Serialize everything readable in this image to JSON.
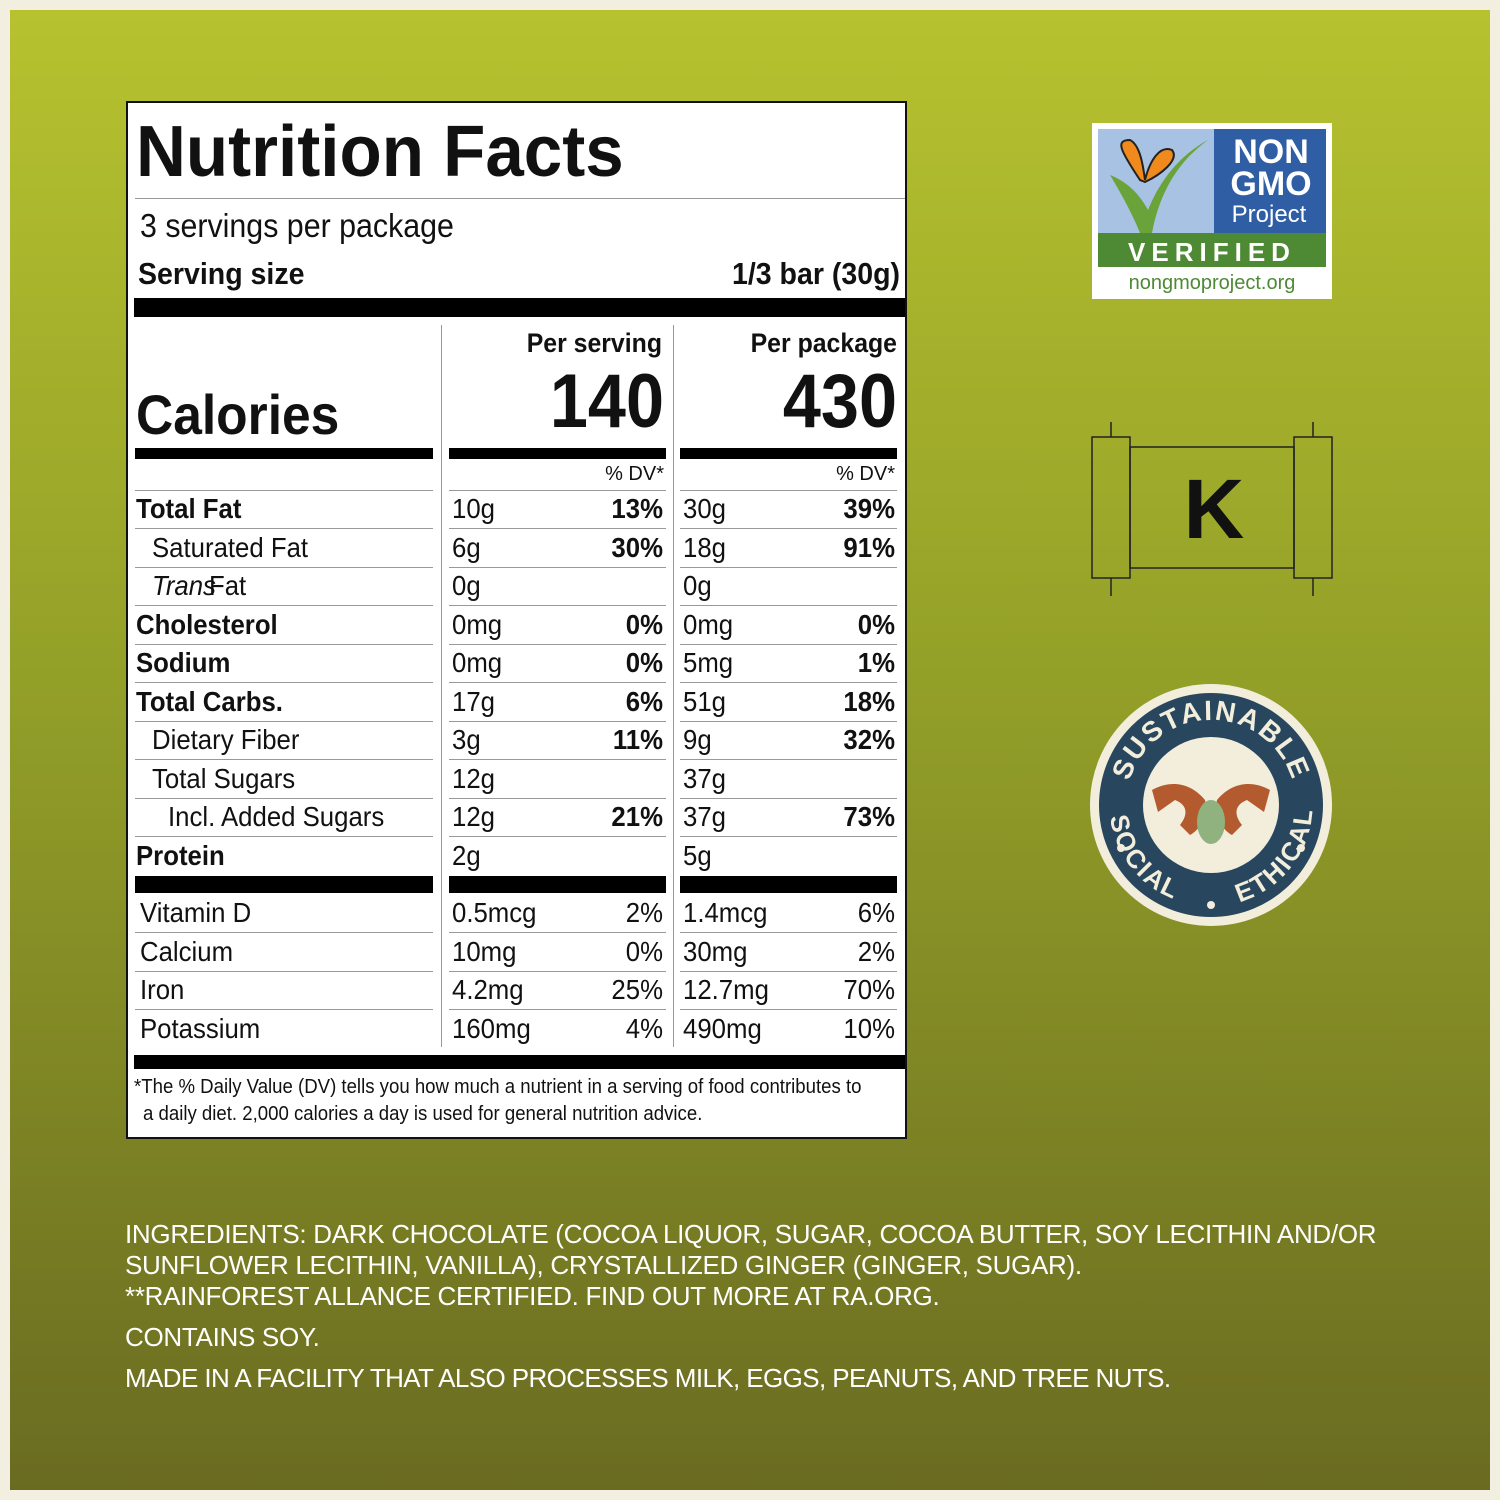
{
  "nutrition": {
    "title": "Nutrition Facts",
    "servings": "3 servings per package",
    "serving_size_label": "Serving size",
    "serving_size_value": "1/3 bar (30g)",
    "per_serving": "Per serving",
    "per_package": "Per package",
    "calories_label": "Calories",
    "calories_serving": "140",
    "calories_package": "430",
    "dv_label": "% DV*",
    "rows": [
      {
        "name": "Total Fat",
        "amount_serving": "10g",
        "dv_serving": "13%",
        "amount_package": "30g",
        "dv_package": "39%",
        "bold": true,
        "indent": 0
      },
      {
        "name": "Saturated Fat",
        "amount_serving": "6g",
        "dv_serving": "30%",
        "amount_package": "18g",
        "dv_package": "91%",
        "bold": false,
        "indent": 1
      },
      {
        "name_italic": "Trans",
        "name": "Fat",
        "amount_serving": "0g",
        "amount_package": "0g",
        "bold": false,
        "indent": 1
      },
      {
        "name": "Cholesterol",
        "amount_serving": "0mg",
        "dv_serving": "0%",
        "amount_package": "0mg",
        "dv_package": "0%",
        "bold": true,
        "indent": 0
      },
      {
        "name": "Sodium",
        "amount_serving": "0mg",
        "dv_serving": "0%",
        "amount_package": "5mg",
        "dv_package": "1%",
        "bold": true,
        "indent": 0
      },
      {
        "name": "Total Carbs.",
        "amount_serving": "17g",
        "dv_serving": "6%",
        "amount_package": "51g",
        "dv_package": "18%",
        "bold": true,
        "indent": 0
      },
      {
        "name": "Dietary Fiber",
        "amount_serving": "3g",
        "dv_serving": "11%",
        "amount_package": "9g",
        "dv_package": "32%",
        "bold": false,
        "indent": 1
      },
      {
        "name": "Total Sugars",
        "amount_serving": "12g",
        "amount_package": "37g",
        "bold": false,
        "indent": 1
      },
      {
        "name": "Incl. Added Sugars",
        "amount_serving": "12g",
        "dv_serving": "21%",
        "amount_package": "37g",
        "dv_package": "73%",
        "bold": false,
        "indent": 2
      },
      {
        "name": "Protein",
        "amount_serving": "2g",
        "amount_package": "5g",
        "bold": true,
        "indent": 0
      }
    ],
    "vitamins": [
      {
        "name": "Vitamin D",
        "amount_serving": "0.5mcg",
        "dv_serving": "2%",
        "amount_package": "1.4mcg",
        "dv_package": "6%"
      },
      {
        "name": "Calcium",
        "amount_serving": "10mg",
        "dv_serving": "0%",
        "amount_package": "30mg",
        "dv_package": "2%"
      },
      {
        "name": "Iron",
        "amount_serving": "4.2mg",
        "dv_serving": "25%",
        "amount_package": "12.7mg",
        "dv_package": "70%"
      },
      {
        "name": "Potassium",
        "amount_serving": "160mg",
        "dv_serving": "4%",
        "amount_package": "490mg",
        "dv_package": "10%"
      }
    ],
    "footnote": [
      "*The % Daily Value (DV) tells you how much a nutrient in a serving of food contributes to",
      "a daily diet. 2,000 calories a day is used for general nutrition advice."
    ]
  },
  "badges": {
    "non_gmo": {
      "line1": "NON",
      "line2": "GMO",
      "line3": "Project",
      "verified": "VERIFIED",
      "url": "nongmoproject.org"
    },
    "kosher": "K",
    "sustainable": {
      "top": "SUSTAINABLE",
      "left": "SOCIAL",
      "right": "ETHICAL"
    }
  },
  "ingredients": [
    "INGREDIENTS: DARK CHOCOLATE (COCOA LIQUOR, SUGAR, COCOA BUTTER, SOY LECITHIN AND/OR",
    "SUNFLOWER LECITHIN, VANILLA), CRYSTALLIZED GINGER (GINGER, SUGAR).",
    "**RAINFOREST ALLANCE CERTIFIED. FIND OUT MORE AT RA.ORG."
  ],
  "allergens": "CONTAINS SOY.",
  "facility": "MADE IN A FACILITY THAT ALSO PROCESSES MILK, EGGS, PEANUTS, AND TREE NUTS."
}
